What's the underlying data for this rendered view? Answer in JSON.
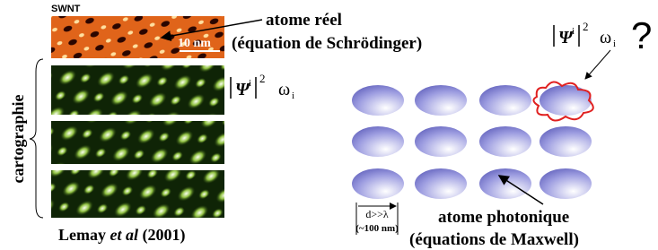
{
  "image": {
    "sample": "SWNT",
    "scale": "10 nm"
  },
  "labels": {
    "real_atom": "atome réel",
    "real_equation": "(équation de Schrödinger)",
    "mapping": "cartographie",
    "photonic_atom": "atome photonique",
    "photonic_equation": "(équations de Maxwell)",
    "spacing": "d>>λ",
    "spacing_size": "(~100 nm)",
    "question": "?"
  },
  "formula": {
    "psi": "Ψ",
    "index": "i",
    "power": "2",
    "omega": "ω",
    "subscript": "i"
  },
  "citation": {
    "author": "Lemay",
    "etal": "et al",
    "year": "(2001)"
  }
}
